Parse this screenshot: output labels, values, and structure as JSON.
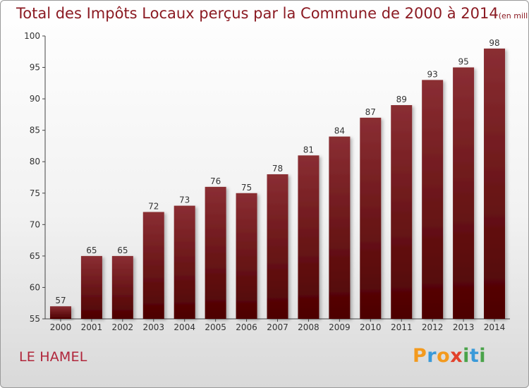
{
  "header": {
    "title": "Total des Impôts Locaux perçus par la Commune de 2000 à 2014",
    "unit": "(en milliers d'€)"
  },
  "footer": {
    "commune": "LE HAMEL",
    "logo_text": "Proxiti",
    "logo_letters": [
      {
        "ch": "P",
        "color": "#f39a1e"
      },
      {
        "ch": "r",
        "color": "#3a9ad9"
      },
      {
        "ch": "o",
        "color": "#f39a1e"
      },
      {
        "ch": "x",
        "color": "#e2412b"
      },
      {
        "ch": "i",
        "color": "#4aa34a"
      },
      {
        "ch": "t",
        "color": "#3a9ad9"
      },
      {
        "ch": "i",
        "color": "#4aa34a"
      }
    ]
  },
  "colors": {
    "bar_top": "#8a2e33",
    "bar_bottom": "#4d0000",
    "text": "#333333",
    "title": "#8b1a22"
  },
  "chart_data": {
    "type": "bar",
    "title": "Total des Impôts Locaux perçus par la Commune de 2000 à 2014",
    "xlabel": "",
    "ylabel": "",
    "ylim": [
      55,
      100
    ],
    "yticks": [
      55,
      60,
      65,
      70,
      75,
      80,
      85,
      90,
      95,
      100
    ],
    "grid": false,
    "categories": [
      "2000",
      "2001",
      "2002",
      "2003",
      "2004",
      "2005",
      "2006",
      "2007",
      "2008",
      "2009",
      "2010",
      "2011",
      "2012",
      "2013",
      "2014"
    ],
    "values": [
      57,
      65,
      65,
      72,
      73,
      76,
      75,
      78,
      81,
      84,
      87,
      89,
      93,
      95,
      98
    ]
  }
}
